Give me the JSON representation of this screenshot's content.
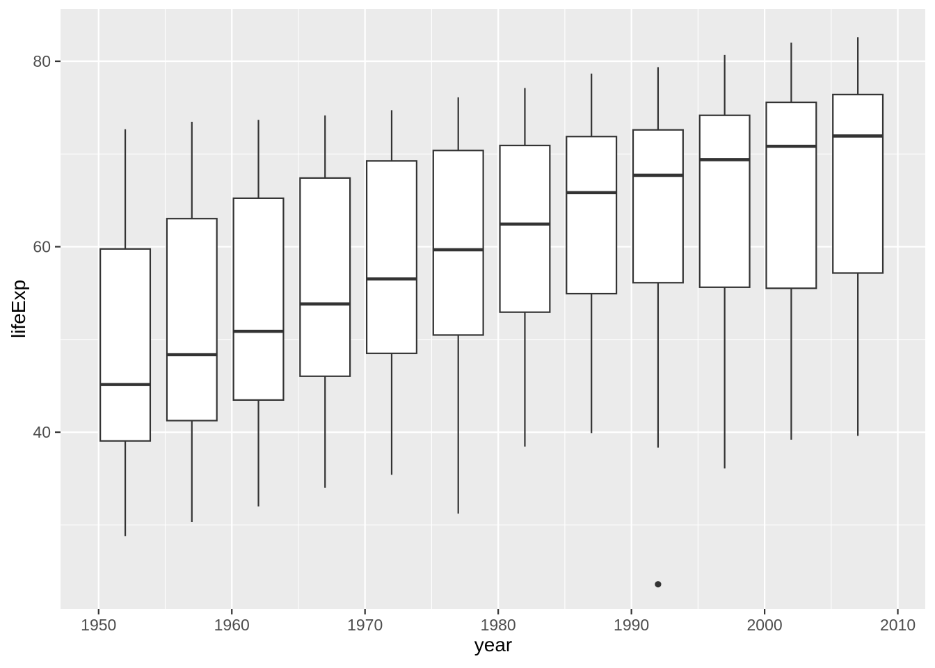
{
  "chart_data": {
    "type": "boxplot",
    "xlabel": "year",
    "ylabel": "lifeExp",
    "x_ticks": [
      1950,
      1960,
      1970,
      1980,
      1990,
      2000,
      2010
    ],
    "y_ticks": [
      40,
      60,
      80
    ],
    "x_minor_gridlines": [
      1955,
      1965,
      1975,
      1985,
      1995,
      2005
    ],
    "y_minor_gridlines": [
      30,
      50,
      70
    ],
    "xlim": [
      1947.14,
      2012.06
    ],
    "ylim": [
      20.95,
      85.63
    ],
    "box_width_years": 3.75,
    "grid": true,
    "legend": "none",
    "boxes": [
      {
        "year": 1952,
        "lower_whisker": 28.8,
        "q1": 39.06,
        "median": 45.14,
        "q3": 59.76,
        "upper_whisker": 72.67,
        "outliers": []
      },
      {
        "year": 1957,
        "lower_whisker": 30.33,
        "q1": 41.25,
        "median": 48.36,
        "q3": 63.03,
        "upper_whisker": 73.47,
        "outliers": []
      },
      {
        "year": 1962,
        "lower_whisker": 32.0,
        "q1": 43.47,
        "median": 50.88,
        "q3": 65.23,
        "upper_whisker": 73.68,
        "outliers": []
      },
      {
        "year": 1967,
        "lower_whisker": 34.02,
        "q1": 46.03,
        "median": 53.83,
        "q3": 67.41,
        "upper_whisker": 74.16,
        "outliers": []
      },
      {
        "year": 1972,
        "lower_whisker": 35.4,
        "q1": 48.5,
        "median": 56.53,
        "q3": 69.25,
        "upper_whisker": 74.72,
        "outliers": []
      },
      {
        "year": 1977,
        "lower_whisker": 31.22,
        "q1": 50.48,
        "median": 59.67,
        "q3": 70.38,
        "upper_whisker": 76.11,
        "outliers": []
      },
      {
        "year": 1982,
        "lower_whisker": 38.45,
        "q1": 52.94,
        "median": 62.44,
        "q3": 70.92,
        "upper_whisker": 77.11,
        "outliers": []
      },
      {
        "year": 1987,
        "lower_whisker": 39.91,
        "q1": 54.94,
        "median": 65.83,
        "q3": 71.88,
        "upper_whisker": 78.67,
        "outliers": []
      },
      {
        "year": 1992,
        "lower_whisker": 38.33,
        "q1": 56.12,
        "median": 67.7,
        "q3": 72.6,
        "upper_whisker": 79.36,
        "outliers": [
          23.6
        ]
      },
      {
        "year": 1997,
        "lower_whisker": 36.09,
        "q1": 55.63,
        "median": 69.39,
        "q3": 74.17,
        "upper_whisker": 80.69,
        "outliers": []
      },
      {
        "year": 2002,
        "lower_whisker": 39.19,
        "q1": 55.52,
        "median": 70.83,
        "q3": 75.57,
        "upper_whisker": 82.0,
        "outliers": []
      },
      {
        "year": 2007,
        "lower_whisker": 39.61,
        "q1": 57.16,
        "median": 71.94,
        "q3": 76.41,
        "upper_whisker": 82.6,
        "outliers": []
      }
    ],
    "colors": {
      "panel_background": "#EBEBEB",
      "gridline": "#FFFFFF",
      "box_stroke": "#333333",
      "box_fill": "#FFFFFF",
      "outlier": "#333333",
      "tick_text": "#4D4D4D",
      "axis_title_text": "#000000",
      "tick_mark": "#333333"
    }
  }
}
